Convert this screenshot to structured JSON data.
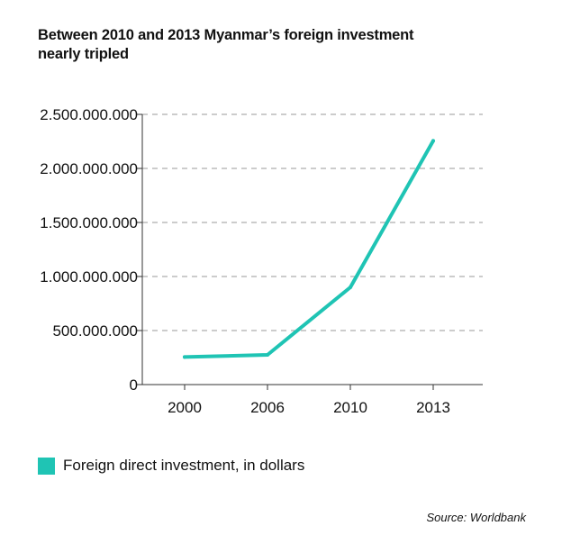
{
  "title_lines": [
    "Between 2010 and 2013 Myanmar’s foreign investment",
    "nearly tripled"
  ],
  "source": "Source: Worldbank",
  "colors": {
    "series": "#1fc4b4",
    "grid": "#9a9a9a",
    "axis": "#333333"
  },
  "chart_data": {
    "type": "line",
    "title": "Between 2010 and 2013 Myanmar’s foreign investment nearly tripled",
    "x": [
      "2000",
      "2006",
      "2010",
      "2013"
    ],
    "series": [
      {
        "name": "Foreign direct investment, in dollars",
        "values": [
          255000000,
          275000000,
          900000000,
          2255000000
        ]
      }
    ],
    "y_ticks": [
      0,
      500000000,
      1000000000,
      1500000000,
      2000000000,
      2500000000
    ],
    "y_tick_labels": [
      "0",
      "500.000.000",
      "1.000.000.000",
      "1.500.000.000",
      "2.000.000.000",
      "2.500.000.000"
    ],
    "ylim": [
      0,
      2500000000
    ],
    "grid": true,
    "grid_style": "dashed horizontal",
    "legend_position": "bottom-left",
    "xlabel": "",
    "ylabel": ""
  }
}
